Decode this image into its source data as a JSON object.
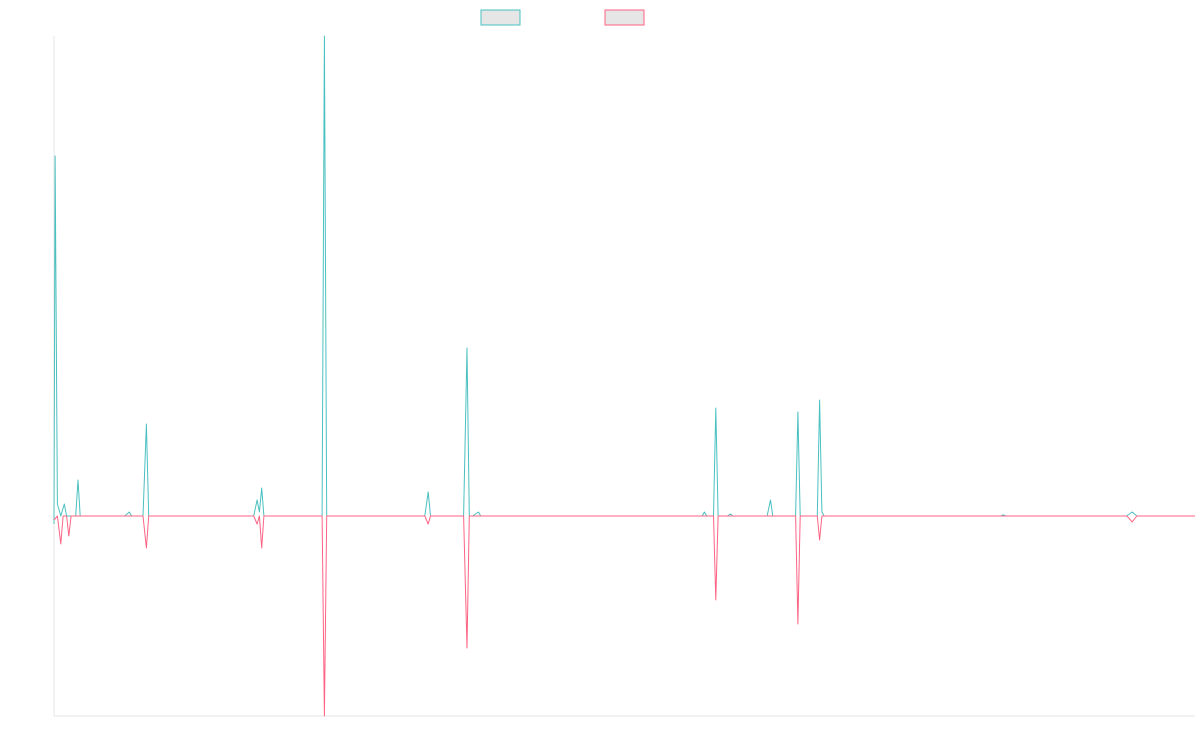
{
  "chart_data": {
    "type": "line",
    "title": "",
    "xlabel": "",
    "ylabel": "",
    "grid": false,
    "legend_position": "top-center",
    "xlim": [
      0,
      1000
    ],
    "ylim": [
      -0.5,
      1.2
    ],
    "baseline": 0,
    "series": [
      {
        "color": "#4bc0c0",
        "fill": "#e6e6e6",
        "points": [
          [
            0,
            -0.02
          ],
          [
            1,
            0.9
          ],
          [
            3,
            0.03
          ],
          [
            6,
            0.0
          ],
          [
            9,
            0.03
          ],
          [
            11,
            0.0
          ],
          [
            19,
            0.0
          ],
          [
            21,
            0.09
          ],
          [
            23,
            0.0
          ],
          [
            62,
            0.0
          ],
          [
            66,
            0.01
          ],
          [
            68,
            0.0
          ],
          [
            78,
            0.0
          ],
          [
            81,
            0.23
          ],
          [
            83,
            0.0
          ],
          [
            175,
            0.0
          ],
          [
            178,
            0.04
          ],
          [
            180,
            0.01
          ],
          [
            182,
            0.07
          ],
          [
            184,
            0.0
          ],
          [
            235,
            0.0
          ],
          [
            237,
            1.2
          ],
          [
            239,
            0.0
          ],
          [
            325,
            0.0
          ],
          [
            328,
            0.06
          ],
          [
            330,
            0.0
          ],
          [
            359,
            0.0
          ],
          [
            362,
            0.42
          ],
          [
            364,
            0.0
          ],
          [
            367,
            0.0
          ],
          [
            372,
            0.01
          ],
          [
            374,
            0.0
          ],
          [
            530,
            0.0
          ],
          [
            568,
            0.0
          ],
          [
            570,
            0.01
          ],
          [
            572,
            0.0
          ],
          [
            578,
            0.0
          ],
          [
            580,
            0.27
          ],
          [
            582,
            0.0
          ],
          [
            590,
            0.0
          ],
          [
            593,
            0.005
          ],
          [
            595,
            0.0
          ],
          [
            625,
            0.0
          ],
          [
            628,
            0.04
          ],
          [
            630,
            0.0
          ],
          [
            650,
            0.0
          ],
          [
            652,
            0.26
          ],
          [
            654,
            0.0
          ],
          [
            669,
            0.0
          ],
          [
            671,
            0.29
          ],
          [
            673,
            0.01
          ],
          [
            675,
            0.0
          ],
          [
            830,
            0.0
          ],
          [
            832,
            0.003
          ],
          [
            834,
            0.0
          ],
          [
            940,
            0.0
          ],
          [
            945,
            0.01
          ],
          [
            949,
            0.0
          ],
          [
            1000,
            0.0
          ]
        ]
      },
      {
        "color": "#ff6384",
        "fill": "#e6e6e6",
        "points": [
          [
            0,
            -0.01
          ],
          [
            3,
            0.0
          ],
          [
            6,
            -0.07
          ],
          [
            8,
            0.0
          ],
          [
            11,
            0.0
          ],
          [
            13,
            -0.05
          ],
          [
            15,
            0.0
          ],
          [
            78,
            0.0
          ],
          [
            81,
            -0.08
          ],
          [
            83,
            0.0
          ],
          [
            175,
            0.0
          ],
          [
            178,
            -0.02
          ],
          [
            180,
            0.0
          ],
          [
            182,
            -0.08
          ],
          [
            184,
            0.0
          ],
          [
            235,
            0.0
          ],
          [
            237,
            -0.5
          ],
          [
            239,
            0.0
          ],
          [
            325,
            0.0
          ],
          [
            328,
            -0.02
          ],
          [
            330,
            0.0
          ],
          [
            359,
            0.0
          ],
          [
            362,
            -0.33
          ],
          [
            364,
            0.0
          ],
          [
            578,
            0.0
          ],
          [
            580,
            -0.21
          ],
          [
            582,
            0.0
          ],
          [
            650,
            0.0
          ],
          [
            652,
            -0.27
          ],
          [
            654,
            0.0
          ],
          [
            669,
            0.0
          ],
          [
            671,
            -0.06
          ],
          [
            673,
            0.0
          ],
          [
            940,
            0.0
          ],
          [
            942,
            -0.005
          ],
          [
            945,
            -0.015
          ],
          [
            949,
            0.0
          ],
          [
            1000,
            0.0
          ]
        ]
      }
    ]
  }
}
